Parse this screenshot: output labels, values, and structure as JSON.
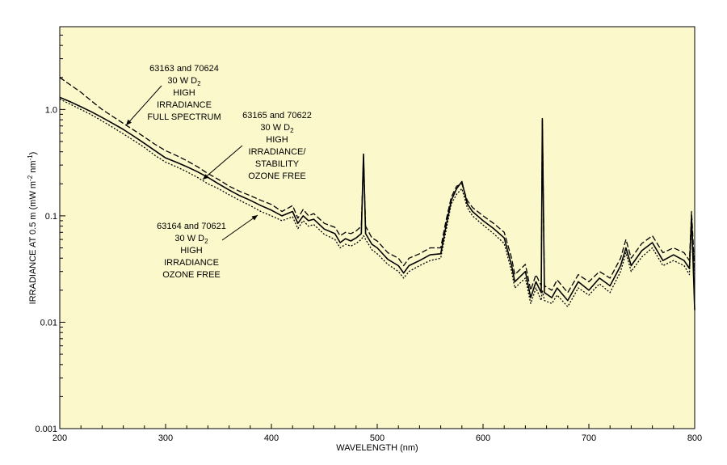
{
  "colors": {
    "plot_bg": "#fbf8cb",
    "line": "#000000",
    "page_bg": "#ffffff"
  },
  "chart_data": {
    "type": "line",
    "title": "",
    "xlabel": "WAVELENGTH (nm)",
    "ylabel_parts": {
      "a": "IRRADIANCE AT 0.5 m (mW m",
      "sup1": "-2",
      "b": " nm",
      "sup2": "-1",
      "c": ")"
    },
    "xlim": [
      200,
      800
    ],
    "ylim": [
      0.001,
      6
    ],
    "y_scale": "log",
    "grid": false,
    "x_ticks": [
      {
        "value": 200,
        "label": "200"
      },
      {
        "value": 300,
        "label": "300"
      },
      {
        "value": 400,
        "label": "400"
      },
      {
        "value": 500,
        "label": "500"
      },
      {
        "value": 600,
        "label": "600"
      },
      {
        "value": 700,
        "label": "700"
      },
      {
        "value": 800,
        "label": "800"
      }
    ],
    "y_ticks": [
      {
        "value": 0.001,
        "label": "0.001"
      },
      {
        "value": 0.01,
        "label": "0.01"
      },
      {
        "value": 0.1,
        "label": "0.1"
      },
      {
        "value": 1.0,
        "label": "1.0"
      }
    ],
    "series": [
      {
        "line_style": "dashed",
        "points": [
          [
            200,
            2.0
          ],
          [
            210,
            1.7
          ],
          [
            220,
            1.45
          ],
          [
            230,
            1.2
          ],
          [
            240,
            1.0
          ],
          [
            250,
            0.86
          ],
          [
            260,
            0.74
          ],
          [
            270,
            0.64
          ],
          [
            280,
            0.55
          ],
          [
            290,
            0.47
          ],
          [
            300,
            0.41
          ],
          [
            310,
            0.37
          ],
          [
            320,
            0.33
          ],
          [
            330,
            0.29
          ],
          [
            340,
            0.25
          ],
          [
            350,
            0.22
          ],
          [
            360,
            0.19
          ],
          [
            370,
            0.17
          ],
          [
            380,
            0.155
          ],
          [
            390,
            0.14
          ],
          [
            400,
            0.128
          ],
          [
            410,
            0.11
          ],
          [
            420,
            0.125
          ],
          [
            425,
            0.095
          ],
          [
            430,
            0.115
          ],
          [
            435,
            0.1
          ],
          [
            440,
            0.105
          ],
          [
            450,
            0.085
          ],
          [
            460,
            0.078
          ],
          [
            465,
            0.065
          ],
          [
            470,
            0.07
          ],
          [
            475,
            0.068
          ],
          [
            480,
            0.072
          ],
          [
            485,
            0.08
          ],
          [
            487,
            0.36
          ],
          [
            489,
            0.08
          ],
          [
            495,
            0.062
          ],
          [
            500,
            0.058
          ],
          [
            510,
            0.045
          ],
          [
            520,
            0.04
          ],
          [
            525,
            0.034
          ],
          [
            530,
            0.04
          ],
          [
            540,
            0.044
          ],
          [
            550,
            0.05
          ],
          [
            560,
            0.05
          ],
          [
            565,
            0.09
          ],
          [
            570,
            0.15
          ],
          [
            575,
            0.19
          ],
          [
            580,
            0.2
          ],
          [
            585,
            0.14
          ],
          [
            590,
            0.12
          ],
          [
            600,
            0.1
          ],
          [
            610,
            0.085
          ],
          [
            620,
            0.07
          ],
          [
            627,
            0.04
          ],
          [
            630,
            0.028
          ],
          [
            640,
            0.035
          ],
          [
            645,
            0.02
          ],
          [
            650,
            0.028
          ],
          [
            655,
            0.022
          ],
          [
            656,
            0.8
          ],
          [
            658,
            0.022
          ],
          [
            665,
            0.02
          ],
          [
            670,
            0.025
          ],
          [
            680,
            0.019
          ],
          [
            690,
            0.028
          ],
          [
            700,
            0.024
          ],
          [
            710,
            0.03
          ],
          [
            720,
            0.026
          ],
          [
            730,
            0.04
          ],
          [
            735,
            0.06
          ],
          [
            740,
            0.04
          ],
          [
            750,
            0.055
          ],
          [
            760,
            0.065
          ],
          [
            770,
            0.045
          ],
          [
            780,
            0.05
          ],
          [
            790,
            0.045
          ],
          [
            795,
            0.038
          ],
          [
            797,
            0.11
          ],
          [
            800,
            0.03
          ]
        ],
        "annotation": [
          "63163 and 70624",
          "30 W D2",
          "HIGH",
          "IRRADIANCE",
          "FULL SPECTRUM"
        ]
      },
      {
        "line_style": "solid",
        "points": [
          [
            200,
            1.3
          ],
          [
            210,
            1.18
          ],
          [
            220,
            1.06
          ],
          [
            230,
            0.95
          ],
          [
            240,
            0.84
          ],
          [
            250,
            0.74
          ],
          [
            260,
            0.65
          ],
          [
            270,
            0.56
          ],
          [
            280,
            0.48
          ],
          [
            290,
            0.41
          ],
          [
            300,
            0.35
          ],
          [
            310,
            0.32
          ],
          [
            320,
            0.29
          ],
          [
            330,
            0.26
          ],
          [
            340,
            0.23
          ],
          [
            350,
            0.2
          ],
          [
            360,
            0.175
          ],
          [
            370,
            0.155
          ],
          [
            380,
            0.14
          ],
          [
            390,
            0.125
          ],
          [
            400,
            0.113
          ],
          [
            410,
            0.1
          ],
          [
            420,
            0.11
          ],
          [
            425,
            0.085
          ],
          [
            430,
            0.1
          ],
          [
            435,
            0.09
          ],
          [
            440,
            0.093
          ],
          [
            450,
            0.075
          ],
          [
            460,
            0.068
          ],
          [
            465,
            0.056
          ],
          [
            470,
            0.061
          ],
          [
            475,
            0.058
          ],
          [
            480,
            0.062
          ],
          [
            485,
            0.068
          ],
          [
            487,
            0.38
          ],
          [
            489,
            0.068
          ],
          [
            495,
            0.054
          ],
          [
            500,
            0.05
          ],
          [
            510,
            0.039
          ],
          [
            520,
            0.034
          ],
          [
            525,
            0.029
          ],
          [
            530,
            0.034
          ],
          [
            540,
            0.038
          ],
          [
            550,
            0.043
          ],
          [
            560,
            0.044
          ],
          [
            565,
            0.08
          ],
          [
            570,
            0.14
          ],
          [
            575,
            0.18
          ],
          [
            580,
            0.21
          ],
          [
            585,
            0.13
          ],
          [
            590,
            0.11
          ],
          [
            600,
            0.09
          ],
          [
            610,
            0.076
          ],
          [
            620,
            0.062
          ],
          [
            627,
            0.034
          ],
          [
            630,
            0.024
          ],
          [
            640,
            0.03
          ],
          [
            645,
            0.017
          ],
          [
            650,
            0.024
          ],
          [
            655,
            0.019
          ],
          [
            656,
            0.82
          ],
          [
            658,
            0.019
          ],
          [
            665,
            0.017
          ],
          [
            670,
            0.021
          ],
          [
            680,
            0.016
          ],
          [
            690,
            0.024
          ],
          [
            700,
            0.02
          ],
          [
            710,
            0.026
          ],
          [
            720,
            0.022
          ],
          [
            730,
            0.034
          ],
          [
            735,
            0.05
          ],
          [
            740,
            0.034
          ],
          [
            750,
            0.047
          ],
          [
            760,
            0.056
          ],
          [
            770,
            0.038
          ],
          [
            780,
            0.043
          ],
          [
            790,
            0.038
          ],
          [
            795,
            0.032
          ],
          [
            797,
            0.1
          ],
          [
            800,
            0.013
          ]
        ],
        "annotation": [
          "63165 and 70622",
          "30 W D2",
          "HIGH",
          "IRRADIANCE/",
          "STABILITY",
          "OZONE FREE"
        ]
      },
      {
        "line_style": "dotted",
        "points": [
          [
            200,
            1.25
          ],
          [
            210,
            1.12
          ],
          [
            220,
            1.0
          ],
          [
            230,
            0.89
          ],
          [
            240,
            0.78
          ],
          [
            250,
            0.68
          ],
          [
            260,
            0.59
          ],
          [
            270,
            0.51
          ],
          [
            280,
            0.44
          ],
          [
            290,
            0.37
          ],
          [
            300,
            0.32
          ],
          [
            310,
            0.29
          ],
          [
            320,
            0.26
          ],
          [
            330,
            0.23
          ],
          [
            340,
            0.2
          ],
          [
            350,
            0.18
          ],
          [
            360,
            0.158
          ],
          [
            370,
            0.14
          ],
          [
            380,
            0.125
          ],
          [
            390,
            0.11
          ],
          [
            400,
            0.1
          ],
          [
            410,
            0.09
          ],
          [
            420,
            0.098
          ],
          [
            425,
            0.076
          ],
          [
            430,
            0.09
          ],
          [
            435,
            0.08
          ],
          [
            440,
            0.083
          ],
          [
            450,
            0.067
          ],
          [
            460,
            0.06
          ],
          [
            465,
            0.05
          ],
          [
            470,
            0.054
          ],
          [
            475,
            0.052
          ],
          [
            480,
            0.055
          ],
          [
            485,
            0.06
          ],
          [
            487,
            0.065
          ],
          [
            489,
            0.06
          ],
          [
            495,
            0.048
          ],
          [
            500,
            0.044
          ],
          [
            510,
            0.035
          ],
          [
            520,
            0.03
          ],
          [
            525,
            0.026
          ],
          [
            530,
            0.03
          ],
          [
            540,
            0.034
          ],
          [
            550,
            0.038
          ],
          [
            560,
            0.04
          ],
          [
            565,
            0.072
          ],
          [
            570,
            0.13
          ],
          [
            575,
            0.16
          ],
          [
            580,
            0.18
          ],
          [
            585,
            0.12
          ],
          [
            590,
            0.1
          ],
          [
            600,
            0.082
          ],
          [
            610,
            0.068
          ],
          [
            620,
            0.055
          ],
          [
            627,
            0.03
          ],
          [
            630,
            0.021
          ],
          [
            640,
            0.026
          ],
          [
            645,
            0.015
          ],
          [
            650,
            0.021
          ],
          [
            655,
            0.016
          ],
          [
            656,
            0.02
          ],
          [
            658,
            0.016
          ],
          [
            665,
            0.015
          ],
          [
            670,
            0.018
          ],
          [
            680,
            0.014
          ],
          [
            690,
            0.021
          ],
          [
            700,
            0.018
          ],
          [
            710,
            0.023
          ],
          [
            720,
            0.019
          ],
          [
            730,
            0.03
          ],
          [
            735,
            0.045
          ],
          [
            740,
            0.03
          ],
          [
            750,
            0.041
          ],
          [
            760,
            0.05
          ],
          [
            770,
            0.034
          ],
          [
            780,
            0.038
          ],
          [
            790,
            0.034
          ],
          [
            795,
            0.028
          ],
          [
            797,
            0.09
          ],
          [
            800,
            0.028
          ]
        ],
        "annotation": [
          "63164 and 70621",
          "30 W D2",
          "HIGH",
          "IRRADIANCE",
          "OZONE FREE"
        ]
      }
    ]
  }
}
